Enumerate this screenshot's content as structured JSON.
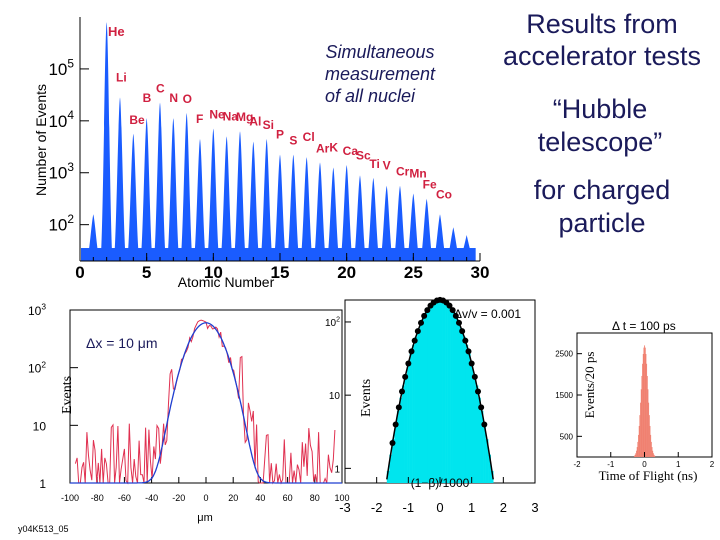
{
  "title_lines": [
    "Results from",
    "accelerator tests"
  ],
  "hubble_lines": [
    "“Hubble",
    "telescope”"
  ],
  "charged_lines": [
    "for charged",
    "particle"
  ],
  "sim_lines": [
    "Simultaneous",
    "measurement",
    "of all nuclei"
  ],
  "footer": "y04K513_05",
  "colors": {
    "histogram": "#1a5cff",
    "curve": "#1f3fd0",
    "data": "#e03050",
    "cyan": "#00e5ee",
    "tof": "#f08070"
  },
  "chart_data": [
    {
      "type": "bar",
      "title": "",
      "xlabel": "Atomic Number",
      "ylabel": "Number of Events",
      "xlim": [
        0,
        30
      ],
      "ylim_log10": [
        1.3,
        6
      ],
      "xticks": [
        "0",
        "5",
        "10",
        "15",
        "20",
        "25",
        "30"
      ],
      "ytick_labels": [
        {
          "base": "10",
          "exp": "5",
          "value": 100000
        },
        {
          "base": "10",
          "exp": "4",
          "value": 10000
        },
        {
          "base": "10",
          "exp": "3",
          "value": 1000
        },
        {
          "base": "10",
          "exp": "2",
          "value": 100
        }
      ],
      "peaks": [
        {
          "z": 1,
          "label": "",
          "log10": 2.2
        },
        {
          "z": 2,
          "label": "He",
          "log10": 5.9
        },
        {
          "z": 3,
          "label": "Li",
          "log10": 4.45
        },
        {
          "z": 4,
          "label": "Be",
          "log10": 3.75
        },
        {
          "z": 5,
          "label": "B",
          "log10": 4.05
        },
        {
          "z": 6,
          "label": "C",
          "log10": 4.35
        },
        {
          "z": 7,
          "label": "N",
          "log10": 4.05
        },
        {
          "z": 8,
          "label": "O",
          "log10": 4.15
        },
        {
          "z": 9,
          "label": "F",
          "log10": 3.65
        },
        {
          "z": 10,
          "label": "Ne",
          "log10": 3.85
        },
        {
          "z": 11,
          "label": "Na",
          "log10": 3.7
        },
        {
          "z": 12,
          "label": "Mg",
          "log10": 3.8
        },
        {
          "z": 13,
          "label": "Al",
          "log10": 3.6
        },
        {
          "z": 14,
          "label": "Si",
          "log10": 3.65
        },
        {
          "z": 15,
          "label": "P",
          "log10": 3.35
        },
        {
          "z": 16,
          "label": "S",
          "log10": 3.35
        },
        {
          "z": 17,
          "label": "Cl",
          "log10": 3.3
        },
        {
          "z": 18,
          "label": "Ar",
          "log10": 3.2
        },
        {
          "z": 19,
          "label": "K",
          "log10": 3.1
        },
        {
          "z": 20,
          "label": "Ca",
          "log10": 3.15
        },
        {
          "z": 21,
          "label": "Sc",
          "log10": 2.95
        },
        {
          "z": 22,
          "label": "Ti",
          "log10": 2.9
        },
        {
          "z": 23,
          "label": "V",
          "log10": 2.75
        },
        {
          "z": 24,
          "label": "Cr",
          "log10": 2.75
        },
        {
          "z": 25,
          "label": "Mn",
          "log10": 2.6
        },
        {
          "z": 26,
          "label": "Fe",
          "log10": 2.5
        },
        {
          "z": 27,
          "label": "Co",
          "log10": 2.2
        },
        {
          "z": 28,
          "label": "",
          "log10": 1.95
        },
        {
          "z": 29,
          "label": "",
          "log10": 1.8
        }
      ]
    },
    {
      "type": "line",
      "title": "",
      "annotation": "Δx = 10 μm",
      "xlabel": "μm",
      "ylabel": "Events",
      "xlim": [
        -100,
        100
      ],
      "ylim_log10": [
        0,
        3
      ],
      "xticks": [
        "-100",
        "-80",
        "-60",
        "-40",
        "-20",
        "0",
        "20",
        "40",
        "60",
        "80",
        "100"
      ],
      "ytick_labels": [
        {
          "base": "10",
          "exp": "3",
          "value": 1000
        },
        {
          "base": "10",
          "exp": "2",
          "value": 100
        },
        {
          "base": "10",
          "exp": "",
          "value": 10
        },
        {
          "base": "1",
          "exp": "",
          "value": 1
        }
      ],
      "gaussian": {
        "amplitude": 600,
        "mean": 0,
        "sigma": 10,
        "background": 1
      }
    },
    {
      "type": "bar",
      "title": "",
      "annotation": "Δv/v = 0.001",
      "xlabel": "(1−β)/1000",
      "ylabel": "Events",
      "xlim": [
        -3,
        3
      ],
      "ylim_log10": [
        -0.2,
        2.3
      ],
      "xticks": [
        "-3",
        "-2",
        "-1",
        "0",
        "1",
        "2",
        "3"
      ],
      "ytick_labels": [
        {
          "base": "10",
          "exp": "2",
          "value": 100
        },
        {
          "base": "10",
          "exp": "",
          "value": 10
        },
        {
          "base": "1",
          "exp": "",
          "value": 1
        }
      ],
      "gaussian": {
        "amplitude": 200,
        "mean": 0,
        "sigma": 0.5
      }
    },
    {
      "type": "bar",
      "title": "",
      "annotation": "Δ t = 100 ps",
      "xlabel": "Time of Flight (ns)",
      "ylabel": "Events/20 ps",
      "xlim": [
        -2,
        2
      ],
      "ylim": [
        0,
        3000
      ],
      "xticks": [
        "-2",
        "-1",
        "0",
        "1",
        "2"
      ],
      "yticks": [
        "500",
        "1500",
        "2500"
      ],
      "gaussian": {
        "amplitude": 2700,
        "mean": 0,
        "sigma": 0.1
      }
    }
  ]
}
